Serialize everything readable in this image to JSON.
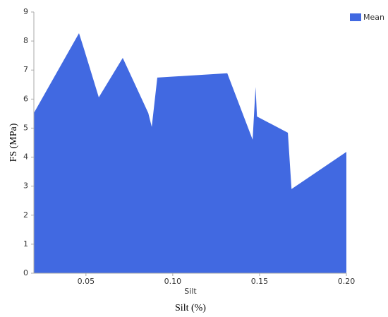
{
  "chart_data": {
    "type": "area",
    "x_label": "Silt",
    "caption": "Silt (%)",
    "y_label": "FS (MPa)",
    "x": [
      0.02,
      0.046,
      0.0485,
      0.0574,
      0.0712,
      0.0859,
      0.0879,
      0.0911,
      0.1314,
      0.146,
      0.1477,
      0.1485,
      0.1663,
      0.1684,
      0.2
    ],
    "series": [
      {
        "name": "Mean",
        "color": "#4169e1",
        "values": [
          5.52,
          8.27,
          7.8,
          6.06,
          7.42,
          5.52,
          5.04,
          6.74,
          6.89,
          4.6,
          6.42,
          5.4,
          4.84,
          2.9,
          4.18
        ]
      }
    ],
    "xlim": [
      0.02,
      0.2
    ],
    "ylim": [
      0,
      9
    ],
    "xticks": [
      0.05,
      {
        "value": 0.1,
        "label": "0.10"
      },
      0.15,
      {
        "value": 0.2,
        "label": "0.20"
      }
    ],
    "yticks": [
      0,
      1,
      2,
      3,
      4,
      5,
      6,
      7,
      8,
      9
    ],
    "legend": "top-right"
  }
}
